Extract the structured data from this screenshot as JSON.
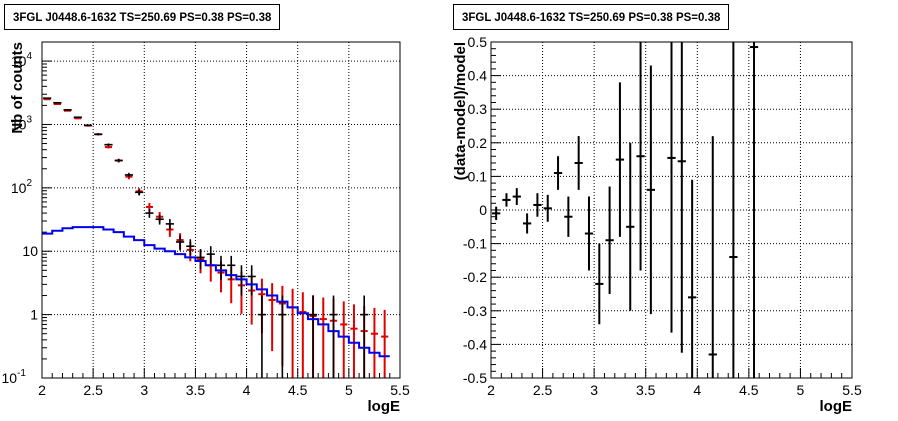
{
  "chart_data": [
    {
      "type": "line",
      "title": "3FGL J0448.6-1632 TS=250.69 PS=0.38 PS=0.38",
      "xlabel": "logE",
      "ylabel": "Nb of counts",
      "xlim": [
        2,
        5.5
      ],
      "ylim": [
        0.1,
        20000
      ],
      "yscale": "log",
      "grid": true,
      "xticks": [
        "2",
        "2.5",
        "3",
        "3.5",
        "4",
        "4.5",
        "5",
        "5.5"
      ],
      "yticks": [
        {
          "v": 0.1,
          "label": "10",
          "exp": "-1"
        },
        {
          "v": 1,
          "label": "1",
          "exp": ""
        },
        {
          "v": 10,
          "label": "10",
          "exp": ""
        },
        {
          "v": 100,
          "label": "10",
          "exp": "2"
        },
        {
          "v": 1000,
          "label": "10",
          "exp": "3"
        },
        {
          "v": 10000,
          "label": "10",
          "exp": "4"
        }
      ],
      "binwidth": 0.1,
      "data_counts": [
        [
          2.05,
          2600
        ],
        [
          2.15,
          2200
        ],
        [
          2.25,
          1700
        ],
        [
          2.35,
          1300
        ],
        [
          2.45,
          970
        ],
        [
          2.55,
          700
        ],
        [
          2.65,
          480
        ],
        [
          2.75,
          270
        ],
        [
          2.85,
          160
        ],
        [
          2.95,
          85
        ],
        [
          3.05,
          40
        ],
        [
          3.15,
          32
        ],
        [
          3.25,
          27
        ],
        [
          3.35,
          14
        ],
        [
          3.45,
          12
        ],
        [
          3.55,
          8
        ],
        [
          3.65,
          9
        ],
        [
          3.75,
          6
        ],
        [
          3.85,
          6
        ],
        [
          3.95,
          4
        ],
        [
          4.05,
          4
        ],
        [
          4.15,
          1
        ],
        [
          4.35,
          1
        ],
        [
          4.65,
          1
        ],
        [
          4.85,
          1
        ],
        [
          5.15,
          1
        ]
      ],
      "model_counts": [
        [
          2.05,
          2500
        ],
        [
          2.15,
          2100
        ],
        [
          2.25,
          1650
        ],
        [
          2.35,
          1250
        ],
        [
          2.45,
          960
        ],
        [
          2.55,
          700
        ],
        [
          2.65,
          440
        ],
        [
          2.75,
          270
        ],
        [
          2.85,
          150
        ],
        [
          2.95,
          88
        ],
        [
          3.05,
          50
        ],
        [
          3.15,
          35
        ],
        [
          3.25,
          22
        ],
        [
          3.35,
          15
        ],
        [
          3.45,
          10.5
        ],
        [
          3.55,
          7.5
        ],
        [
          3.65,
          6
        ],
        [
          3.75,
          4.6
        ],
        [
          3.85,
          3.6
        ],
        [
          3.95,
          2.9
        ],
        [
          4.05,
          2.4
        ],
        [
          4.15,
          2.1
        ],
        [
          4.25,
          1.7
        ],
        [
          4.35,
          1.5
        ],
        [
          4.45,
          1.3
        ],
        [
          4.55,
          1.1
        ],
        [
          4.65,
          0.95
        ],
        [
          4.75,
          0.85
        ],
        [
          4.85,
          0.8
        ],
        [
          4.95,
          0.7
        ],
        [
          5.05,
          0.6
        ],
        [
          5.15,
          0.55
        ],
        [
          5.25,
          0.5
        ],
        [
          5.35,
          0.45
        ]
      ],
      "source_model": [
        [
          2.05,
          19
        ],
        [
          2.15,
          21
        ],
        [
          2.25,
          23
        ],
        [
          2.35,
          24
        ],
        [
          2.45,
          24
        ],
        [
          2.55,
          24
        ],
        [
          2.65,
          22
        ],
        [
          2.75,
          20
        ],
        [
          2.85,
          17
        ],
        [
          2.95,
          15
        ],
        [
          3.05,
          12.5
        ],
        [
          3.15,
          11
        ],
        [
          3.25,
          10
        ],
        [
          3.35,
          9
        ],
        [
          3.45,
          8
        ],
        [
          3.55,
          7
        ],
        [
          3.65,
          6
        ],
        [
          3.75,
          5
        ],
        [
          3.85,
          4.2
        ],
        [
          3.95,
          3.6
        ],
        [
          4.05,
          3
        ],
        [
          4.15,
          2.5
        ],
        [
          4.25,
          2
        ],
        [
          4.35,
          1.6
        ],
        [
          4.45,
          1.3
        ],
        [
          4.55,
          1.05
        ],
        [
          4.65,
          0.85
        ],
        [
          4.75,
          0.7
        ],
        [
          4.85,
          0.55
        ],
        [
          4.95,
          0.45
        ],
        [
          5.05,
          0.36
        ],
        [
          5.15,
          0.3
        ],
        [
          5.25,
          0.25
        ],
        [
          5.35,
          0.22
        ]
      ],
      "colors": {
        "data": "#000000",
        "model": "#e00000",
        "source": "#0000ee"
      }
    },
    {
      "type": "scatter",
      "title": "3FGL J0448.6-1632 TS=250.69 PS=0.38 PS=0.38",
      "xlabel": "logE",
      "ylabel": "(data-model)/model",
      "xlim": [
        2,
        5.5
      ],
      "ylim": [
        -0.5,
        0.5
      ],
      "grid": true,
      "xticks": [
        "2",
        "2.5",
        "3",
        "3.5",
        "4",
        "4.5",
        "5",
        "5.5"
      ],
      "yticks": [
        "-0.5",
        "-0.4",
        "-0.3",
        "-0.2",
        "-0.1",
        "0",
        "0.1",
        "0.2",
        "0.3",
        "0.4",
        "0.5"
      ],
      "binwidth": 0.1,
      "points": [
        {
          "x": 2.05,
          "y": -0.01,
          "err": 0.02
        },
        {
          "x": 2.15,
          "y": 0.03,
          "err": 0.02
        },
        {
          "x": 2.25,
          "y": 0.04,
          "err": 0.025
        },
        {
          "x": 2.35,
          "y": -0.04,
          "err": 0.03
        },
        {
          "x": 2.45,
          "y": 0.015,
          "err": 0.035
        },
        {
          "x": 2.55,
          "y": 0.005,
          "err": 0.04
        },
        {
          "x": 2.65,
          "y": 0.11,
          "err": 0.05
        },
        {
          "x": 2.75,
          "y": -0.02,
          "err": 0.06
        },
        {
          "x": 2.85,
          "y": 0.14,
          "err": 0.08
        },
        {
          "x": 2.95,
          "y": -0.07,
          "err": 0.11
        },
        {
          "x": 3.05,
          "y": -0.22,
          "err": 0.12
        },
        {
          "x": 3.15,
          "y": -0.09,
          "err": 0.16
        },
        {
          "x": 3.25,
          "y": 0.15,
          "err": 0.23
        },
        {
          "x": 3.35,
          "y": -0.05,
          "err": 0.25
        },
        {
          "x": 3.45,
          "y": 0.16,
          "err": 0.34
        },
        {
          "x": 3.55,
          "y": 0.06,
          "err": 0.37
        },
        {
          "x": 3.75,
          "y": 0.155,
          "err": 0.52
        },
        {
          "x": 3.85,
          "y": 0.145,
          "err": 0.57
        },
        {
          "x": 3.95,
          "y": -0.26,
          "err": 0.35
        },
        {
          "x": 4.15,
          "y": -0.43,
          "err": 0.65
        },
        {
          "x": 4.35,
          "y": -0.14,
          "err": 0.8
        },
        {
          "x": 4.55,
          "y": 0.485,
          "err": 1.0
        }
      ]
    }
  ]
}
